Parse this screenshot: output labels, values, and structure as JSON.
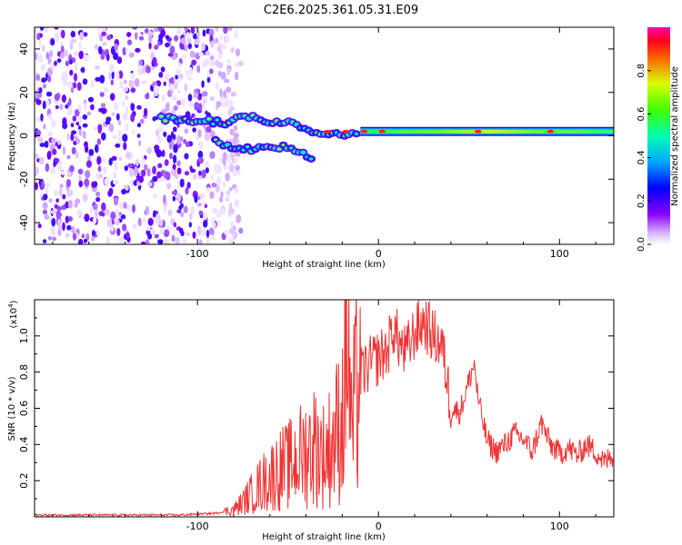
{
  "title": "C2E6.2025.361.05.31.E09",
  "chart_data": [
    {
      "type": "heatmap",
      "xlabel": "Height of straight line (km)",
      "ylabel": "Frequency (Hz)",
      "xlim": [
        -190,
        130
      ],
      "ylim": [
        -50,
        50
      ],
      "xticks": [
        -100,
        0,
        100
      ],
      "yticks": [
        -40,
        -20,
        0,
        20,
        40
      ],
      "colorbar": {
        "label": "Normalized spectral amplitude",
        "range": [
          0,
          1
        ],
        "ticks": [
          "0.0",
          "0.2",
          "0.4",
          "0.6",
          "0.8"
        ],
        "colors": [
          "#ffffff",
          "#8800ff",
          "#0000ff",
          "#00c8ff",
          "#00ff60",
          "#c8ff00",
          "#ff0000",
          "#ff00aa"
        ]
      },
      "features": {
        "noise_region_x": [
          -190,
          -82
        ],
        "upper_branch": [
          [
            -120,
            8
          ],
          [
            -100,
            7
          ],
          [
            -85,
            6
          ],
          [
            -75,
            9
          ],
          [
            -60,
            7
          ],
          [
            -45,
            5
          ],
          [
            -35,
            2
          ],
          [
            -20,
            1
          ],
          [
            0,
            2
          ],
          [
            130,
            2
          ]
        ],
        "lower_branch": [
          [
            -90,
            -3
          ],
          [
            -80,
            -5
          ],
          [
            -70,
            -6
          ],
          [
            -55,
            -5
          ],
          [
            -45,
            -7
          ],
          [
            -35,
            -12
          ]
        ],
        "steady_band_x": [
          -10,
          130
        ],
        "steady_band_frequency_hz": 2
      }
    },
    {
      "type": "line",
      "xlabel": "Height of straight line (km)",
      "ylabel": "SNR (10 * v/v)",
      "yscale_label": "(x10",
      "yscale_exp": "4",
      "xlim": [
        -190,
        130
      ],
      "ylim": [
        0,
        1.2
      ],
      "xticks": [
        -100,
        0,
        100
      ],
      "yticks": [
        0.2,
        0.4,
        0.6,
        0.8,
        1.0
      ],
      "color": "#ee3333",
      "series": [
        {
          "name": "SNR",
          "x": [
            -190,
            -150,
            -110,
            -90,
            -80,
            -75,
            -70,
            -65,
            -60,
            -55,
            -50,
            -45,
            -40,
            -35,
            -30,
            -25,
            -20,
            -17,
            -15,
            -12,
            -10,
            -5,
            0,
            5,
            8,
            12,
            15,
            20,
            25,
            30,
            35,
            38,
            40,
            45,
            50,
            53,
            55,
            60,
            65,
            70,
            75,
            80,
            85,
            90,
            95,
            100,
            105,
            110,
            115,
            120,
            125,
            130
          ],
          "y": [
            0.01,
            0.01,
            0.01,
            0.02,
            0.04,
            0.08,
            0.13,
            0.18,
            0.22,
            0.26,
            0.28,
            0.32,
            0.36,
            0.4,
            0.34,
            0.42,
            0.55,
            1.1,
            0.45,
            0.7,
            0.78,
            0.84,
            0.88,
            0.92,
            1.05,
            0.95,
            0.9,
            1.02,
            1.08,
            1.0,
            0.95,
            0.75,
            0.6,
            0.58,
            0.75,
            0.85,
            0.65,
            0.42,
            0.36,
            0.4,
            0.46,
            0.43,
            0.36,
            0.52,
            0.4,
            0.35,
            0.38,
            0.34,
            0.4,
            0.36,
            0.3,
            0.35
          ]
        }
      ]
    }
  ]
}
